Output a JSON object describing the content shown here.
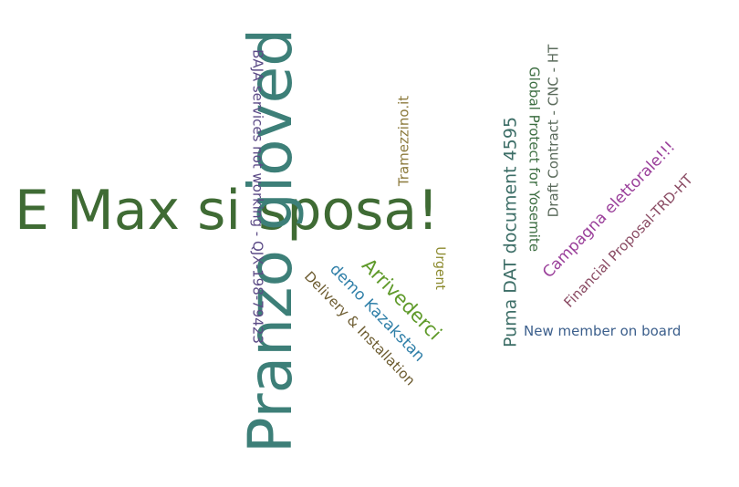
{
  "words": [
    {
      "text": "E Max si sposa!",
      "color": "#3f6b34"
    },
    {
      "text": "Pranzo gioved",
      "color": "#3d7f78"
    },
    {
      "text": "BAJA services not working - QJX-198-79423",
      "color": "#5b4a86"
    },
    {
      "text": "Tramezzino.it",
      "color": "#8c7a3c"
    },
    {
      "text": "Puma DAT document 4595",
      "color": "#3d6e67"
    },
    {
      "text": "Global Protect for Yosemite",
      "color": "#3d6e42"
    },
    {
      "text": "Draft Contract - CNC - HT",
      "color": "#5b6b5c"
    },
    {
      "text": "Campagna elettorale!!!",
      "color": "#9a3f9a"
    },
    {
      "text": "Financial Proposal-TRD-HT",
      "color": "#8a4b63"
    },
    {
      "text": "New member on board",
      "color": "#3c5f8c"
    },
    {
      "text": "Arrivederci",
      "color": "#5f9a2a"
    },
    {
      "text": "demo Kazakstan",
      "color": "#2f7fa8"
    },
    {
      "text": "Delivery & Installation",
      "color": "#6b5a2e"
    },
    {
      "text": "Urgent",
      "color": "#8c8a2e"
    }
  ]
}
